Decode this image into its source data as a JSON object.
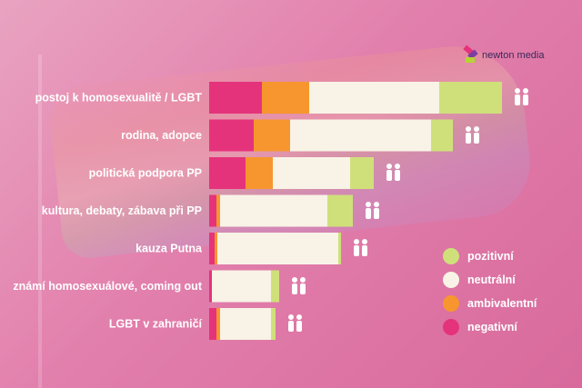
{
  "brand": {
    "logo_text": "newton media"
  },
  "colors": {
    "pozitivni": "#cfe07a",
    "neutralni": "#f8f3e6",
    "ambivalentni": "#f7962e",
    "negativni": "#e5337b"
  },
  "chart_data": {
    "type": "bar",
    "orientation": "horizontal",
    "stacked": true,
    "categories": [
      "postoj k homosexualitě / LGBT",
      "rodina, adopce",
      "politická podpora PP",
      "kultura, debaty, zábava při PP",
      "kauza Putna",
      "známí homosexuálové, coming out",
      "LGBT v zahraničí"
    ],
    "series": [
      {
        "name": "negativní",
        "color": "#e5337b",
        "values": [
          58,
          49,
          40,
          8,
          6,
          3,
          8
        ]
      },
      {
        "name": "ambivalentní",
        "color": "#f7962e",
        "values": [
          52,
          40,
          30,
          4,
          3,
          0,
          4
        ]
      },
      {
        "name": "neutrální",
        "color": "#f8f3e6",
        "values": [
          143,
          155,
          85,
          118,
          133,
          65,
          56
        ]
      },
      {
        "name": "pozitivní",
        "color": "#cfe07a",
        "values": [
          69,
          24,
          26,
          28,
          3,
          9,
          5
        ]
      }
    ],
    "legend": {
      "placement": "bottom-right",
      "entries": [
        "pozitivní",
        "neutrální",
        "ambivalentní",
        "negativní"
      ]
    }
  },
  "icons": [
    "couple-icon",
    "family-icon",
    "protest-signs-icon",
    "music-speaker-icon",
    "person-portrait-icon",
    "megaphone-person-icon",
    "globe-person-icon"
  ]
}
